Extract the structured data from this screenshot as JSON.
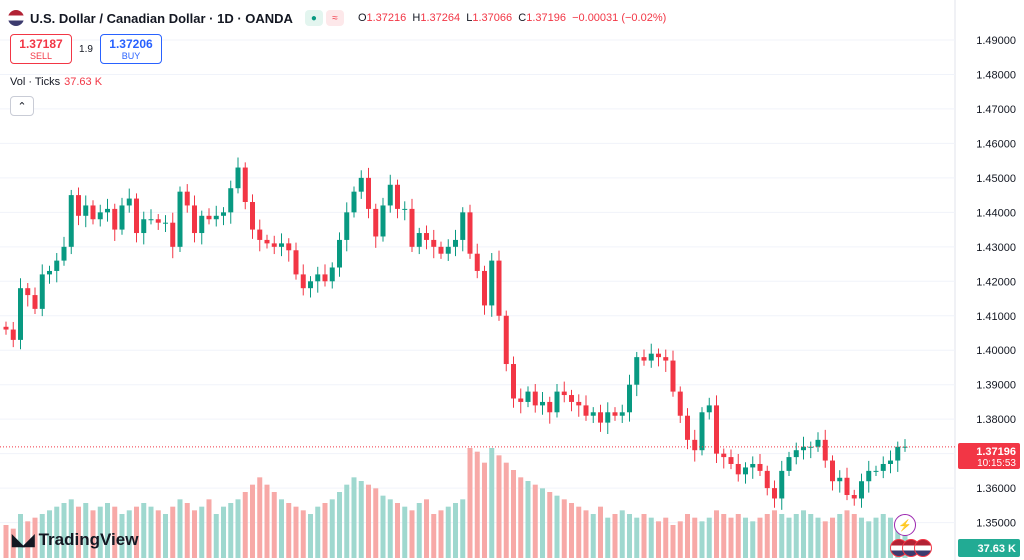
{
  "header": {
    "title": "U.S. Dollar / Canadian Dollar · 1D · OANDA",
    "ohlc": {
      "o_label": "O",
      "o": "1.37216",
      "h_label": "H",
      "h": "1.37264",
      "l_label": "L",
      "l": "1.37066",
      "c_label": "C",
      "c": "1.37196",
      "change": "−0.00031 (−0.02%)"
    }
  },
  "trade": {
    "sell_price": "1.37187",
    "sell_label": "SELL",
    "spread": "1.9",
    "buy_price": "1.37206",
    "buy_label": "BUY"
  },
  "volume_legend": {
    "label": "Vol · Ticks",
    "value": "37.63 K"
  },
  "branding": {
    "name": "TradingView"
  },
  "colors": {
    "up": "#089981",
    "down": "#f23645",
    "up_vol": "#9fd8cf",
    "down_vol": "#f7a9a7"
  },
  "chart_data": {
    "type": "candlestick",
    "y_ticks": [
      "1.49000",
      "1.48000",
      "1.47000",
      "1.46000",
      "1.45000",
      "1.44000",
      "1.43000",
      "1.42000",
      "1.41000",
      "1.40000",
      "1.39000",
      "1.38000",
      "1.37000",
      "1.36000",
      "1.35000"
    ],
    "ylim": [
      1.3464,
      1.4958
    ],
    "last_price": "1.37196",
    "countdown": "10:15:53",
    "volume_last": "37.63 K",
    "candles_close": [
      1.406,
      1.403,
      1.418,
      1.416,
      1.412,
      1.422,
      1.423,
      1.426,
      1.43,
      1.445,
      1.439,
      1.442,
      1.438,
      1.44,
      1.441,
      1.435,
      1.442,
      1.444,
      1.434,
      1.438,
      1.438,
      1.437,
      1.437,
      1.43,
      1.446,
      1.442,
      1.434,
      1.439,
      1.438,
      1.439,
      1.44,
      1.447,
      1.453,
      1.443,
      1.435,
      1.432,
      1.431,
      1.43,
      1.431,
      1.429,
      1.422,
      1.418,
      1.42,
      1.422,
      1.42,
      1.424,
      1.432,
      1.44,
      1.446,
      1.45,
      1.441,
      1.433,
      1.442,
      1.448,
      1.441,
      1.441,
      1.43,
      1.434,
      1.432,
      1.43,
      1.428,
      1.43,
      1.432,
      1.44,
      1.428,
      1.423,
      1.413,
      1.426,
      1.41,
      1.396,
      1.386,
      1.385,
      1.388,
      1.384,
      1.385,
      1.382,
      1.388,
      1.387,
      1.385,
      1.384,
      1.381,
      1.382,
      1.379,
      1.382,
      1.381,
      1.382,
      1.39,
      1.398,
      1.397,
      1.399,
      1.398,
      1.397,
      1.388,
      1.381,
      1.374,
      1.371,
      1.382,
      1.384,
      1.37,
      1.369,
      1.367,
      1.364,
      1.366,
      1.367,
      1.365,
      1.36,
      1.357,
      1.365,
      1.369,
      1.371,
      1.372,
      1.372,
      1.374,
      1.368,
      1.362,
      1.363,
      1.358,
      1.357,
      1.362,
      1.365,
      1.365,
      1.367,
      1.368,
      1.372,
      1.372
    ],
    "volumes": [
      9,
      8,
      12,
      10,
      11,
      12,
      13,
      14,
      15,
      16,
      14,
      15,
      13,
      14,
      15,
      14,
      12,
      13,
      14,
      15,
      14,
      13,
      12,
      14,
      16,
      15,
      13,
      14,
      16,
      12,
      14,
      15,
      16,
      18,
      20,
      22,
      20,
      18,
      16,
      15,
      14,
      13,
      12,
      14,
      15,
      16,
      18,
      20,
      22,
      21,
      20,
      19,
      17,
      16,
      15,
      14,
      13,
      15,
      16,
      12,
      13,
      14,
      15,
      16,
      30,
      29,
      26,
      30,
      28,
      26,
      24,
      22,
      21,
      20,
      19,
      18,
      17,
      16,
      15,
      14,
      13,
      12,
      14,
      11,
      12,
      13,
      12,
      11,
      12,
      11,
      10,
      11,
      9,
      10,
      12,
      11,
      10,
      11,
      13,
      12,
      11,
      12,
      11,
      10,
      11,
      12,
      13,
      12,
      11,
      12,
      13,
      12,
      11,
      10,
      11,
      12,
      13,
      12,
      11,
      10,
      11,
      12,
      11,
      10,
      9
    ]
  }
}
